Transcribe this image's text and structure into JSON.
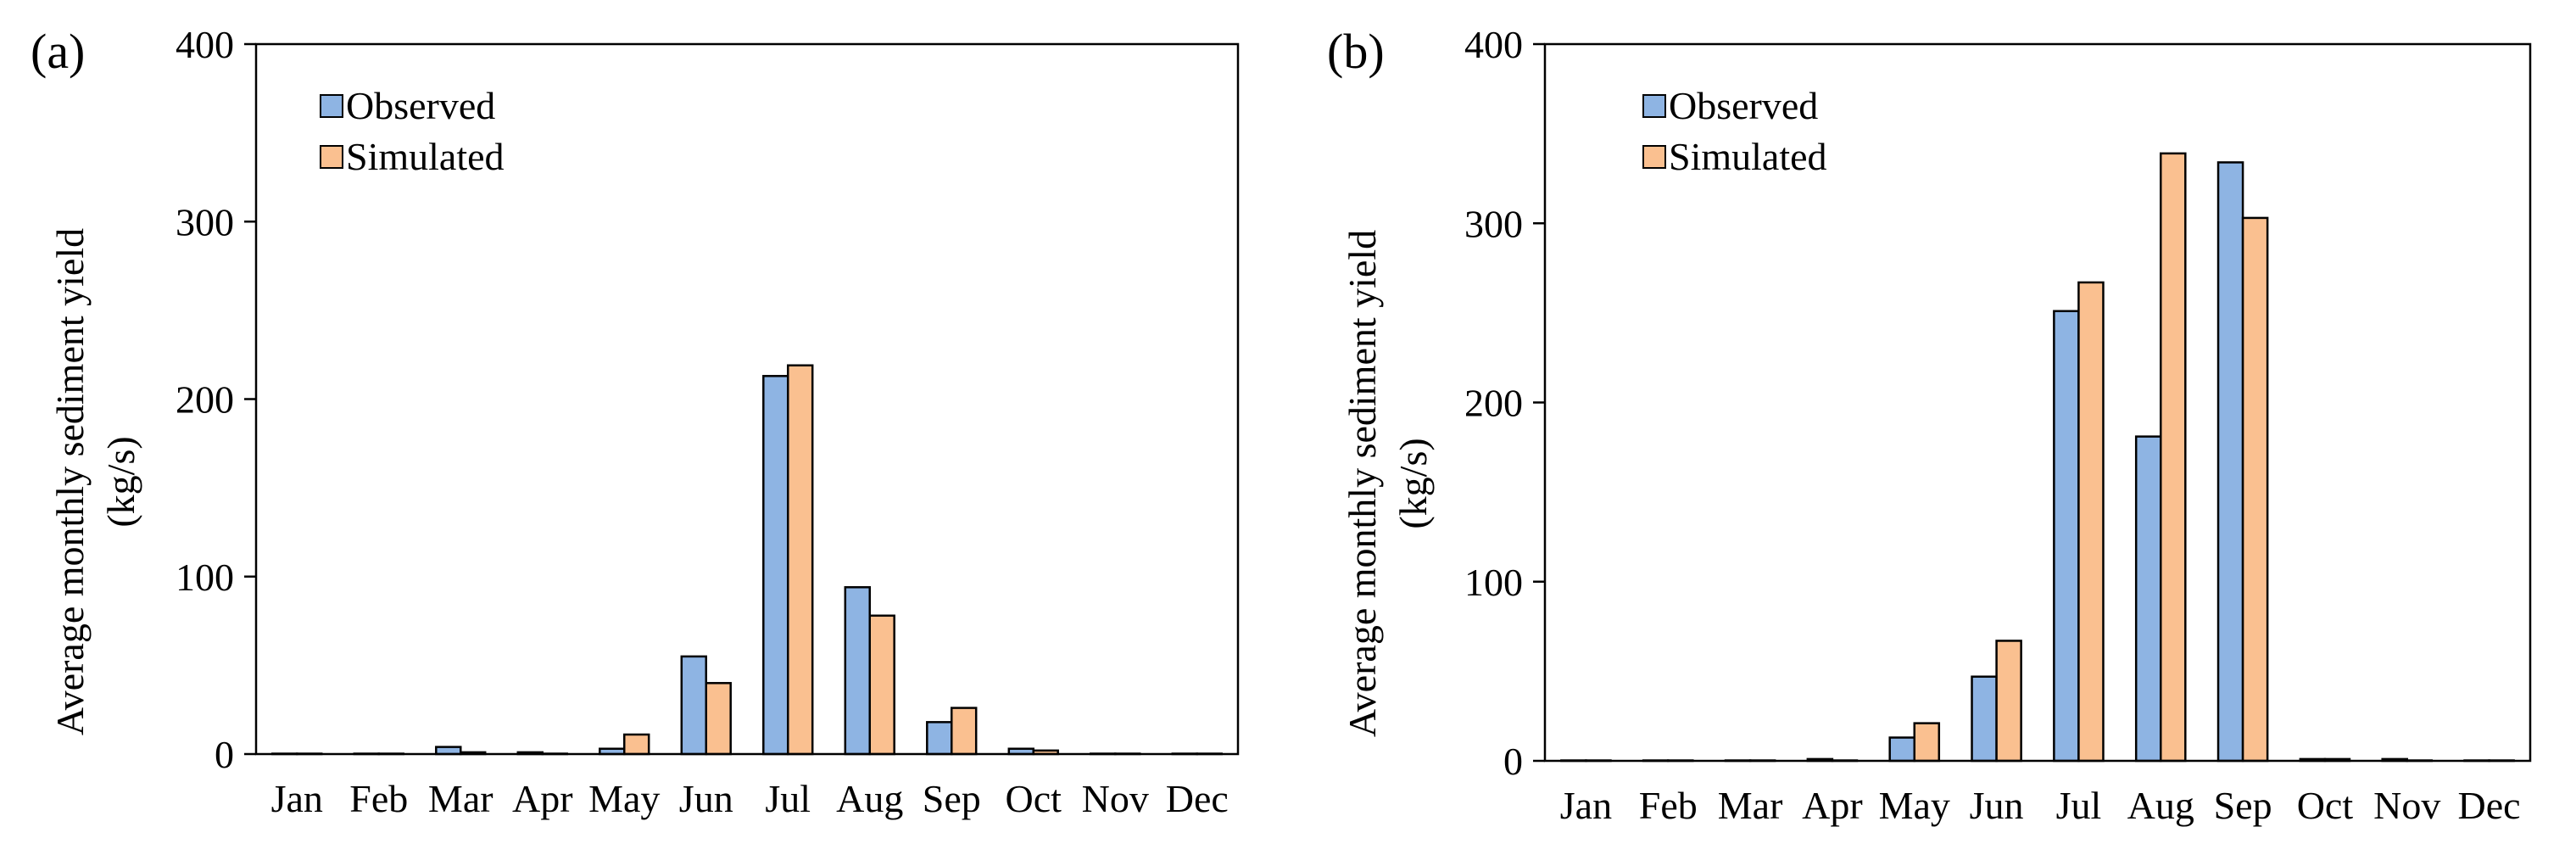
{
  "chart_data": [
    {
      "type": "bar",
      "panel_label": "(a)",
      "categories": [
        "Jan",
        "Feb",
        "Mar",
        "Apr",
        "May",
        "Jun",
        "Jul",
        "Aug",
        "Sep",
        "Oct",
        "Nov",
        "Dec"
      ],
      "series": [
        {
          "name": "Observed",
          "color": "#8eb4e3",
          "values": [
            0,
            0,
            4,
            1,
            3,
            55,
            213,
            94,
            18,
            3,
            0,
            0
          ]
        },
        {
          "name": "Simulated",
          "color": "#fac090",
          "values": [
            0,
            0,
            1,
            0,
            11,
            40,
            219,
            78,
            26,
            2,
            0,
            0
          ]
        }
      ],
      "ylabel_line1": "Average monthly sediment yield",
      "ylabel_line2": "(kg/s)",
      "ylim": [
        0,
        400
      ],
      "yticks": [
        "0",
        "100",
        "200",
        "300",
        "400"
      ],
      "legend_position": "top-left"
    },
    {
      "type": "bar",
      "panel_label": "(b)",
      "categories": [
        "Jan",
        "Feb",
        "Mar",
        "Apr",
        "May",
        "Jun",
        "Jul",
        "Aug",
        "Sep",
        "Oct",
        "Nov",
        "Dec"
      ],
      "series": [
        {
          "name": "Observed",
          "color": "#8eb4e3",
          "values": [
            0,
            0,
            0,
            1,
            13,
            47,
            251,
            181,
            334,
            1,
            1,
            0
          ]
        },
        {
          "name": "Simulated",
          "color": "#fac090",
          "values": [
            0,
            0,
            0,
            0,
            21,
            67,
            267,
            339,
            303,
            1,
            0,
            0
          ]
        }
      ],
      "ylabel_line1": "Average monthly sediment yield",
      "ylabel_line2": "(kg/s)",
      "ylim": [
        0,
        400
      ],
      "yticks": [
        "0",
        "100",
        "200",
        "300",
        "400"
      ],
      "legend_position": "top-left"
    }
  ]
}
